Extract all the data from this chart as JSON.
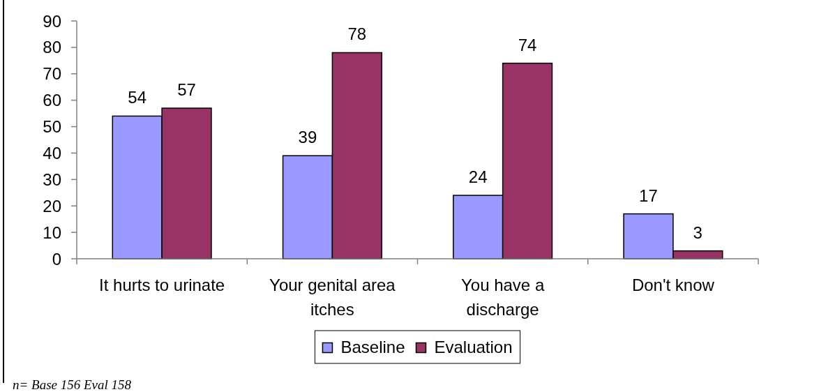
{
  "chart_data": {
    "type": "bar",
    "categories": [
      "It hurts to urinate",
      "Your genital area itches",
      "You have a discharge",
      "Don't know"
    ],
    "series": [
      {
        "name": "Baseline",
        "color": "#9999ff",
        "values": [
          54,
          39,
          24,
          17
        ]
      },
      {
        "name": "Evaluation",
        "color": "#993366",
        "values": [
          57,
          78,
          74,
          3
        ]
      }
    ],
    "ylim": [
      0,
      90
    ],
    "yticks": [
      0,
      10,
      20,
      30,
      40,
      50,
      60,
      70,
      80,
      90
    ],
    "legend": "bottom",
    "data_labels": true,
    "annotations": [
      "n= Base 156 Eval 158"
    ]
  }
}
